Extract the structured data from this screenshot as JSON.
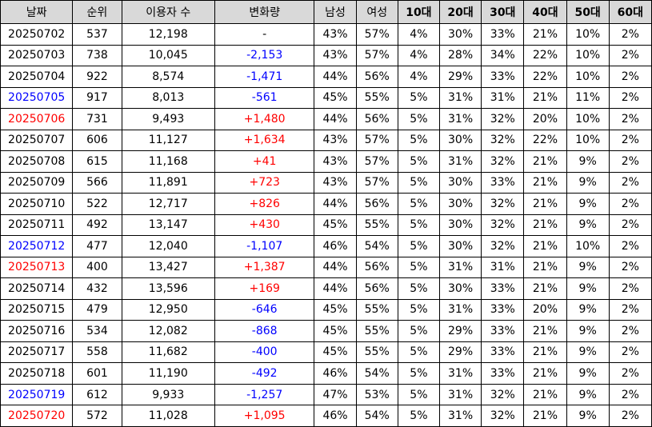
{
  "headers": [
    "날짜",
    "순위",
    "이용자 수",
    "변화량",
    "남성",
    "여성",
    "10대",
    "20대",
    "30대",
    "40대",
    "50대",
    "60대"
  ],
  "rows": [
    {
      "date": "20250702",
      "date_style": "normal",
      "rank": "537",
      "users": "12,198",
      "change": "-",
      "change_style": "neutral",
      "male": "43%",
      "female": "57%",
      "a10": "4%",
      "a20": "30%",
      "a30": "33%",
      "a40": "21%",
      "a50": "10%",
      "a60": "2%"
    },
    {
      "date": "20250703",
      "date_style": "normal",
      "rank": "738",
      "users": "10,045",
      "change": "-2,153",
      "change_style": "neg",
      "male": "43%",
      "female": "57%",
      "a10": "4%",
      "a20": "28%",
      "a30": "34%",
      "a40": "22%",
      "a50": "10%",
      "a60": "2%"
    },
    {
      "date": "20250704",
      "date_style": "normal",
      "rank": "922",
      "users": "8,574",
      "change": "-1,471",
      "change_style": "neg",
      "male": "44%",
      "female": "56%",
      "a10": "4%",
      "a20": "29%",
      "a30": "33%",
      "a40": "22%",
      "a50": "10%",
      "a60": "2%"
    },
    {
      "date": "20250705",
      "date_style": "blue",
      "rank": "917",
      "users": "8,013",
      "change": "-561",
      "change_style": "neg",
      "male": "45%",
      "female": "55%",
      "a10": "5%",
      "a20": "31%",
      "a30": "31%",
      "a40": "21%",
      "a50": "11%",
      "a60": "2%"
    },
    {
      "date": "20250706",
      "date_style": "red",
      "rank": "731",
      "users": "9,493",
      "change": "+1,480",
      "change_style": "pos",
      "male": "44%",
      "female": "56%",
      "a10": "5%",
      "a20": "31%",
      "a30": "32%",
      "a40": "20%",
      "a50": "10%",
      "a60": "2%"
    },
    {
      "date": "20250707",
      "date_style": "normal",
      "rank": "606",
      "users": "11,127",
      "change": "+1,634",
      "change_style": "pos",
      "male": "43%",
      "female": "57%",
      "a10": "5%",
      "a20": "30%",
      "a30": "32%",
      "a40": "22%",
      "a50": "10%",
      "a60": "2%"
    },
    {
      "date": "20250708",
      "date_style": "normal",
      "rank": "615",
      "users": "11,168",
      "change": "+41",
      "change_style": "pos",
      "male": "43%",
      "female": "57%",
      "a10": "5%",
      "a20": "31%",
      "a30": "32%",
      "a40": "21%",
      "a50": "9%",
      "a60": "2%"
    },
    {
      "date": "20250709",
      "date_style": "normal",
      "rank": "566",
      "users": "11,891",
      "change": "+723",
      "change_style": "pos",
      "male": "43%",
      "female": "57%",
      "a10": "5%",
      "a20": "30%",
      "a30": "33%",
      "a40": "21%",
      "a50": "9%",
      "a60": "2%"
    },
    {
      "date": "20250710",
      "date_style": "normal",
      "rank": "522",
      "users": "12,717",
      "change": "+826",
      "change_style": "pos",
      "male": "44%",
      "female": "56%",
      "a10": "5%",
      "a20": "30%",
      "a30": "32%",
      "a40": "21%",
      "a50": "9%",
      "a60": "2%"
    },
    {
      "date": "20250711",
      "date_style": "normal",
      "rank": "492",
      "users": "13,147",
      "change": "+430",
      "change_style": "pos",
      "male": "45%",
      "female": "55%",
      "a10": "5%",
      "a20": "30%",
      "a30": "32%",
      "a40": "21%",
      "a50": "9%",
      "a60": "2%"
    },
    {
      "date": "20250712",
      "date_style": "blue",
      "rank": "477",
      "users": "12,040",
      "change": "-1,107",
      "change_style": "neg",
      "male": "46%",
      "female": "54%",
      "a10": "5%",
      "a20": "30%",
      "a30": "32%",
      "a40": "21%",
      "a50": "10%",
      "a60": "2%"
    },
    {
      "date": "20250713",
      "date_style": "red",
      "rank": "400",
      "users": "13,427",
      "change": "+1,387",
      "change_style": "pos",
      "male": "44%",
      "female": "56%",
      "a10": "5%",
      "a20": "31%",
      "a30": "31%",
      "a40": "21%",
      "a50": "9%",
      "a60": "2%"
    },
    {
      "date": "20250714",
      "date_style": "normal",
      "rank": "432",
      "users": "13,596",
      "change": "+169",
      "change_style": "pos",
      "male": "44%",
      "female": "56%",
      "a10": "5%",
      "a20": "30%",
      "a30": "33%",
      "a40": "21%",
      "a50": "9%",
      "a60": "2%"
    },
    {
      "date": "20250715",
      "date_style": "normal",
      "rank": "479",
      "users": "12,950",
      "change": "-646",
      "change_style": "neg",
      "male": "45%",
      "female": "55%",
      "a10": "5%",
      "a20": "31%",
      "a30": "33%",
      "a40": "20%",
      "a50": "9%",
      "a60": "2%"
    },
    {
      "date": "20250716",
      "date_style": "normal",
      "rank": "534",
      "users": "12,082",
      "change": "-868",
      "change_style": "neg",
      "male": "45%",
      "female": "55%",
      "a10": "5%",
      "a20": "29%",
      "a30": "33%",
      "a40": "21%",
      "a50": "9%",
      "a60": "2%"
    },
    {
      "date": "20250717",
      "date_style": "normal",
      "rank": "558",
      "users": "11,682",
      "change": "-400",
      "change_style": "neg",
      "male": "45%",
      "female": "55%",
      "a10": "5%",
      "a20": "29%",
      "a30": "33%",
      "a40": "21%",
      "a50": "9%",
      "a60": "2%"
    },
    {
      "date": "20250718",
      "date_style": "normal",
      "rank": "601",
      "users": "11,190",
      "change": "-492",
      "change_style": "neg",
      "male": "46%",
      "female": "54%",
      "a10": "5%",
      "a20": "31%",
      "a30": "33%",
      "a40": "21%",
      "a50": "9%",
      "a60": "2%"
    },
    {
      "date": "20250719",
      "date_style": "blue",
      "rank": "612",
      "users": "9,933",
      "change": "-1,257",
      "change_style": "neg",
      "male": "47%",
      "female": "53%",
      "a10": "5%",
      "a20": "31%",
      "a30": "32%",
      "a40": "21%",
      "a50": "9%",
      "a60": "2%"
    },
    {
      "date": "20250720",
      "date_style": "red",
      "rank": "572",
      "users": "11,028",
      "change": "+1,095",
      "change_style": "pos",
      "male": "46%",
      "female": "54%",
      "a10": "5%",
      "a20": "31%",
      "a30": "32%",
      "a40": "21%",
      "a50": "9%",
      "a60": "2%"
    }
  ]
}
